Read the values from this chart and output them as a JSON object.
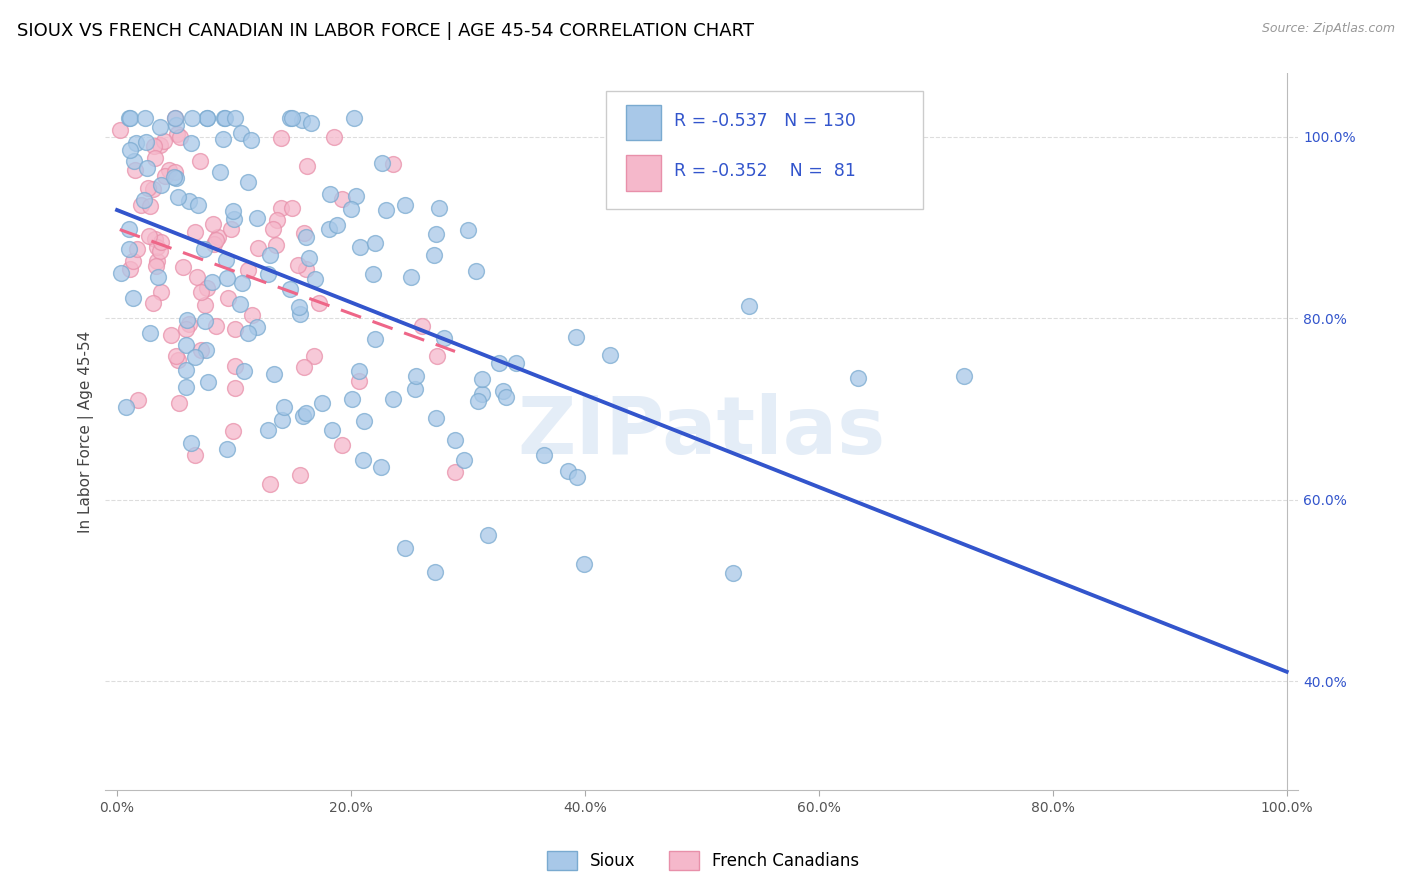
{
  "title": "SIOUX VS FRENCH CANADIAN IN LABOR FORCE | AGE 45-54 CORRELATION CHART",
  "source": "Source: ZipAtlas.com",
  "ylabel": "In Labor Force | Age 45-54",
  "sioux_color": "#a8c8e8",
  "sioux_edge": "#7aaad0",
  "french_color": "#f5b8cb",
  "french_edge": "#e890aa",
  "blue_line": "#3355cc",
  "pink_line": "#ee6688",
  "R_sioux": -0.537,
  "N_sioux": 130,
  "R_french": -0.352,
  "N_french": 81,
  "sioux_seed": 7,
  "french_seed": 13,
  "watermark_text": "ZIPatlas",
  "grid_color": "#dddddd",
  "right_tick_color": "#3355cc",
  "legend_sioux": "Sioux",
  "legend_french": "French Canadians",
  "title_fontsize": 13,
  "tick_fontsize": 10,
  "source_fontsize": 9,
  "ylabel_fontsize": 11
}
